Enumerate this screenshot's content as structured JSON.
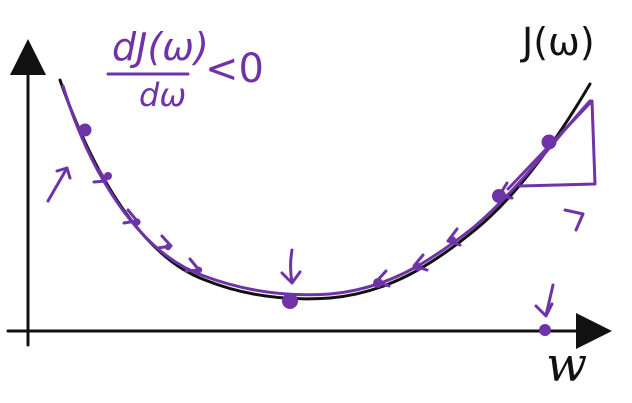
{
  "diagram": {
    "curve_label": "J(ω)",
    "x_axis_label": "w",
    "derivative": {
      "numerator": "dJ(ω)",
      "denominator": "dω",
      "relation": "<0"
    },
    "colors": {
      "curve": "#111111",
      "axis": "#111111",
      "annotation": "#6f33a8"
    }
  }
}
